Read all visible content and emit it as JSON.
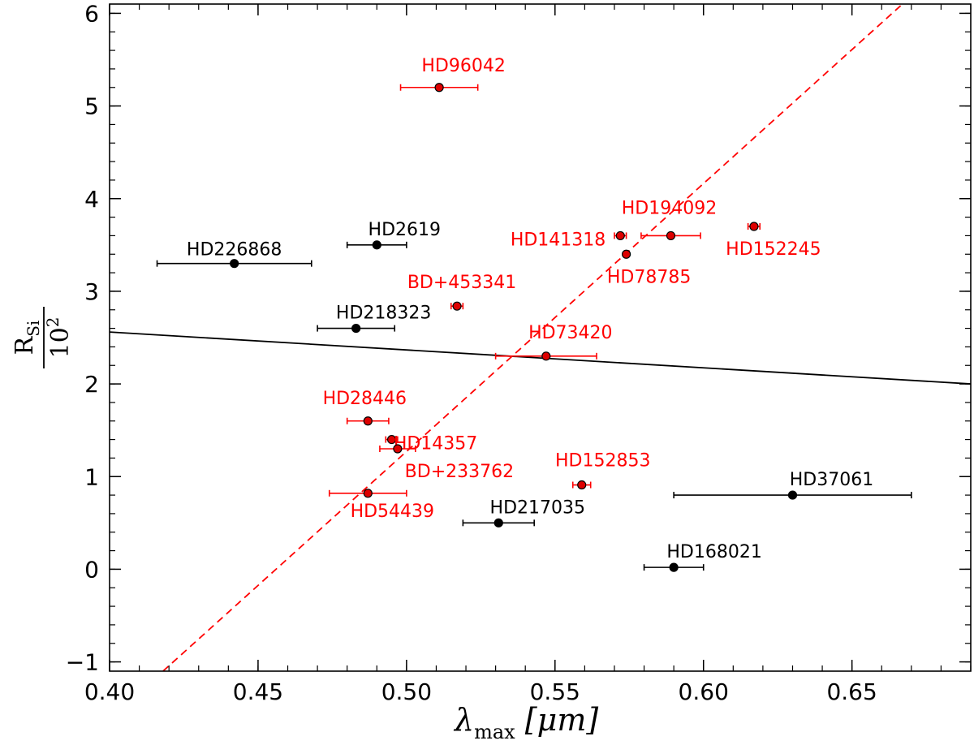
{
  "chart_data": {
    "type": "scatter",
    "xlabel": "λ",
    "xlabel_sub": "max",
    "xlabel_unit": "[μm]",
    "ylabel_num": "R",
    "ylabel_num_sub": "Si",
    "ylabel_den": "10",
    "ylabel_den_sup": "2",
    "xlim": [
      0.4,
      0.69
    ],
    "ylim": [
      -1.1,
      6.1
    ],
    "xticks": [
      0.4,
      0.45,
      0.5,
      0.55,
      0.6,
      0.65
    ],
    "xtick_labels": [
      "0.40",
      "0.45",
      "0.50",
      "0.55",
      "0.60",
      "0.65"
    ],
    "yticks": [
      -1,
      0,
      1,
      2,
      3,
      4,
      5,
      6
    ],
    "ytick_labels": [
      "−1",
      "0",
      "1",
      "2",
      "3",
      "4",
      "5",
      "6"
    ],
    "colors": {
      "black": "#000000",
      "red": "#ff0000",
      "red_fill": "#dd0000"
    },
    "series": [
      {
        "color": "black",
        "points": [
          {
            "label": "HD226868",
            "x": 0.442,
            "y": 3.3,
            "xerr": 0.026
          },
          {
            "label": "HD2619",
            "x": 0.49,
            "y": 3.5,
            "xerr": 0.01
          },
          {
            "label": "HD218323",
            "x": 0.483,
            "y": 2.6,
            "xerr": 0.013
          },
          {
            "label": "HD217035",
            "x": 0.531,
            "y": 0.5,
            "xerr": 0.012
          },
          {
            "label": "HD168021",
            "x": 0.59,
            "y": 0.02,
            "xerr": 0.01
          },
          {
            "label": "HD37061",
            "x": 0.63,
            "y": 0.8,
            "xerr": 0.04
          }
        ]
      },
      {
        "color": "red",
        "points": [
          {
            "label": "HD96042",
            "x": 0.511,
            "y": 5.2,
            "xerr": 0.013
          },
          {
            "label": "HD194092",
            "x": 0.589,
            "y": 3.6,
            "xerr": 0.01
          },
          {
            "label": "HD141318",
            "x": 0.572,
            "y": 3.6,
            "xerr": 0.002
          },
          {
            "label": "HD152245",
            "x": 0.617,
            "y": 3.7,
            "xerr": 0.002
          },
          {
            "label": "HD78785",
            "x": 0.574,
            "y": 3.4,
            "xerr": 0.0
          },
          {
            "label": "BD+453341",
            "x": 0.517,
            "y": 2.84,
            "xerr": 0.002
          },
          {
            "label": "HD73420",
            "x": 0.547,
            "y": 2.3,
            "xerr": 0.017
          },
          {
            "label": "HD28446",
            "x": 0.487,
            "y": 1.6,
            "xerr": 0.007
          },
          {
            "label": "HD14357",
            "x": 0.495,
            "y": 1.4,
            "xerr": 0.002
          },
          {
            "label": "BD+233762",
            "x": 0.497,
            "y": 1.3,
            "xerr": 0.006
          },
          {
            "label": "HD152853",
            "x": 0.559,
            "y": 0.91,
            "xerr": 0.003
          },
          {
            "label": "HD54439",
            "x": 0.487,
            "y": 0.82,
            "xerr": 0.013
          }
        ]
      }
    ],
    "fit_lines": [
      {
        "color": "black",
        "style": "solid",
        "x": [
          0.4,
          0.69
        ],
        "y": [
          2.56,
          2.0
        ]
      },
      {
        "color": "red",
        "style": "dashed",
        "x": [
          0.418,
          0.667
        ],
        "y": [
          -1.1,
          6.1
        ]
      }
    ]
  }
}
